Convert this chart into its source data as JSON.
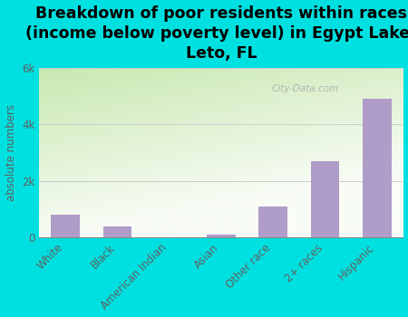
{
  "title": "Breakdown of poor residents within races\n(income below poverty level) in Egypt Lake-\nLeto, FL",
  "categories": [
    "White",
    "Black",
    "American Indian",
    "Asian",
    "Other race",
    "2+ races",
    "Hispanic"
  ],
  "values": [
    800,
    400,
    0,
    100,
    1100,
    2700,
    4900
  ],
  "bar_color": "#b09cc8",
  "ylabel": "absolute numbers",
  "ylim": [
    0,
    6000
  ],
  "yticks": [
    0,
    2000,
    4000,
    6000
  ],
  "ytick_labels": [
    "0",
    "2k",
    "4k",
    "6k"
  ],
  "background_outer": "#00e0e0",
  "bg_top_left": "#c8e8b0",
  "bg_bottom_right": "#f5f5f0",
  "grid_color": "#cccccc",
  "watermark": "City-Data.com",
  "title_fontsize": 12.5,
  "label_fontsize": 8.5,
  "ylabel_fontsize": 8.5,
  "tick_color": "#606060"
}
